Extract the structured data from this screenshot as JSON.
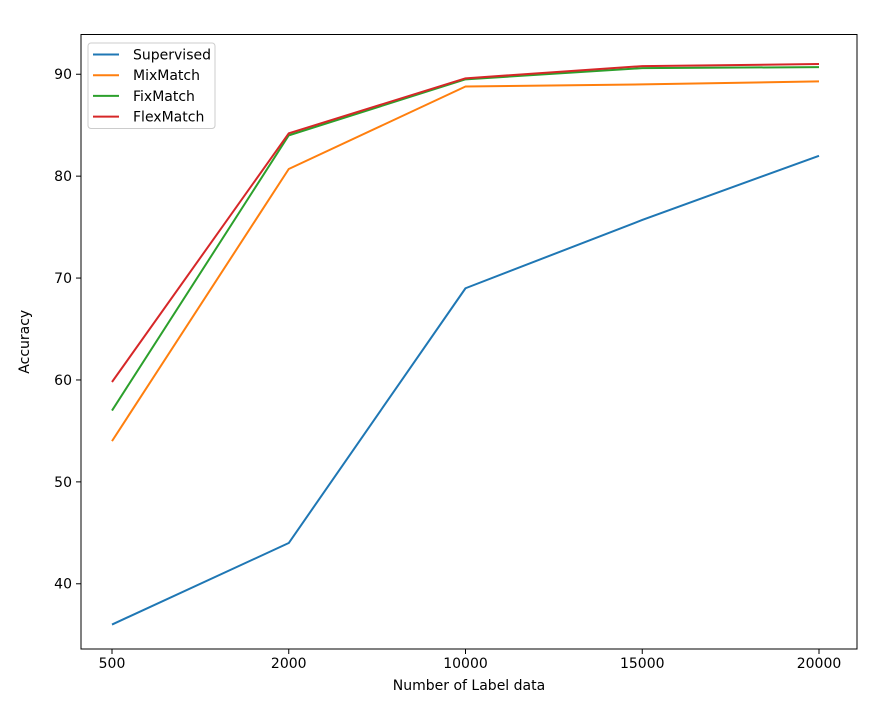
{
  "figure": {
    "background": "#ffffff"
  },
  "chart_data": {
    "type": "line",
    "title": "",
    "xlabel": "Number of Label data",
    "ylabel": "Accuracy",
    "x_scale": "categorical",
    "categories": [
      "500",
      "2000",
      "10000",
      "15000",
      "20000"
    ],
    "y_ticks": [
      "40",
      "50",
      "60",
      "70",
      "80",
      "90"
    ],
    "ylim": [
      33.6,
      93.9
    ],
    "grid": false,
    "legend": {
      "position": "upper left",
      "border_color": "#cccccc",
      "background": "#ffffff"
    },
    "series": [
      {
        "name": "Supervised",
        "color": "#1f77b4",
        "values": [
          36.0,
          44.0,
          69.0,
          75.7,
          82.0
        ]
      },
      {
        "name": "MixMatch",
        "color": "#ff7f0e",
        "values": [
          54.0,
          80.7,
          88.8,
          89.0,
          89.3
        ]
      },
      {
        "name": "FixMatch",
        "color": "#2ca02c",
        "values": [
          57.0,
          84.0,
          89.5,
          90.6,
          90.7
        ]
      },
      {
        "name": "FlexMatch",
        "color": "#d62728",
        "values": [
          59.8,
          84.2,
          89.6,
          90.8,
          91.0
        ]
      }
    ]
  }
}
